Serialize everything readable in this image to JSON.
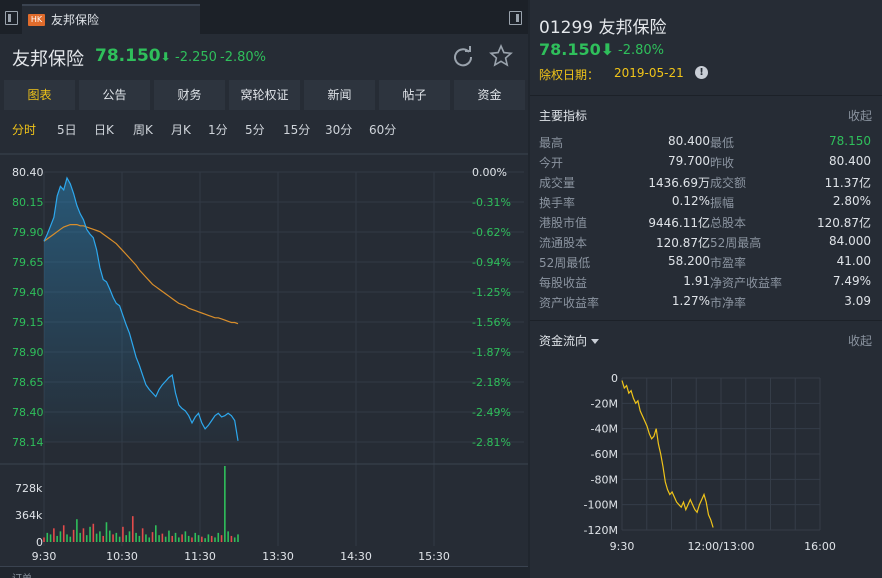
{
  "tab": {
    "badge": "HK",
    "label": "友邦保险"
  },
  "quote": {
    "name": "友邦保险",
    "price": "78.150",
    "arrow": "⬇",
    "change": "-2.250",
    "pct": "-2.80%"
  },
  "subtabs": [
    "图表",
    "公告",
    "财务",
    "窝轮权证",
    "新闻",
    "帖子",
    "资金"
  ],
  "active_subtab": "图表",
  "periods": [
    "分时",
    "5日",
    "日K",
    "周K",
    "月K",
    "1分",
    "5分",
    "15分",
    "30分",
    "60分"
  ],
  "active_period": "分时",
  "bottom_label": "订单",
  "colors": {
    "green": "#2fbf5b",
    "red": "#e34b4b",
    "yellow": "#f0c419",
    "blue": "#2da8ee",
    "orange": "#d98e2b",
    "panel": "#262c35"
  },
  "icons": {
    "refresh": "refresh-icon",
    "star": "star-icon",
    "info": "info-icon",
    "toggle": "panel-toggle-icon"
  },
  "right": {
    "code_name": "01299 友邦保险",
    "price": "78.150⬇",
    "pct": "-2.80%",
    "exdiv_label": "除权日期：",
    "exdiv_date": "2019-05-21",
    "indicators_title": "主要指标",
    "collapse": "收起",
    "metrics": [
      [
        [
          "最高",
          "80.400",
          ""
        ],
        [
          "最低",
          "78.150",
          "green"
        ]
      ],
      [
        [
          "今开",
          "79.700",
          ""
        ],
        [
          "昨收",
          "80.400",
          ""
        ]
      ],
      [
        [
          "成交量",
          "1436.69万",
          ""
        ],
        [
          "成交额",
          "11.37亿",
          ""
        ]
      ],
      [
        [
          "换手率",
          "0.12%",
          ""
        ],
        [
          "振幅",
          "2.80%",
          ""
        ]
      ],
      [
        [
          "港股市值",
          "9446.11亿",
          ""
        ],
        [
          "总股本",
          "120.87亿",
          ""
        ]
      ],
      [
        [
          "流通股本",
          "120.87亿",
          ""
        ],
        [
          "52周最高",
          "84.000",
          ""
        ]
      ],
      [
        [
          "52周最低",
          "58.200",
          ""
        ],
        [
          "市盈率",
          "41.00",
          ""
        ]
      ],
      [
        [
          "每股收益",
          "1.91",
          ""
        ],
        [
          "净资产收益率",
          "7.49%",
          ""
        ]
      ],
      [
        [
          "资产收益率",
          "1.27%",
          ""
        ],
        [
          "市净率",
          "3.09",
          ""
        ]
      ]
    ],
    "flow_title": "资金流向",
    "flow_collapse": "收起"
  },
  "chart_data": [
    {
      "type": "line",
      "title": "",
      "prev_close": 80.4,
      "ylim": [
        78.14,
        80.4
      ],
      "y_ticks": [
        "80.40",
        "80.15",
        "79.90",
        "79.65",
        "79.40",
        "79.15",
        "78.90",
        "78.65",
        "78.40",
        "78.14"
      ],
      "pct_ticks": [
        "0.00%",
        "-0.31%",
        "-0.62%",
        "-0.94%",
        "-1.25%",
        "-1.56%",
        "-1.87%",
        "-2.18%",
        "-2.49%",
        "-2.81%"
      ],
      "x_ticks": [
        "9:30",
        "10:30",
        "11:30",
        "13:30",
        "14:30",
        "15:30"
      ],
      "volume_ticks": [
        "728k",
        "364k",
        "0"
      ],
      "series": [
        {
          "values": [
            79.82,
            79.88,
            79.95,
            80.02,
            80.2,
            80.28,
            80.25,
            80.35,
            80.3,
            80.22,
            80.12,
            80.05,
            80.0,
            79.92,
            79.88,
            79.85,
            79.75,
            79.6,
            79.5,
            79.48,
            79.42,
            79.35,
            79.3,
            79.28,
            79.2,
            79.12,
            79.05,
            78.95,
            78.85,
            78.78,
            78.7,
            78.62,
            78.58,
            78.55,
            78.52,
            78.58,
            78.62,
            78.65,
            78.68,
            78.7,
            78.55,
            78.45,
            78.42,
            78.4,
            78.36,
            78.3,
            78.35,
            78.38,
            78.3,
            78.25,
            78.28,
            78.32,
            78.36,
            78.38,
            78.35,
            78.36,
            78.38,
            78.36,
            78.32,
            78.15
          ]
        },
        {
          "values": [
            79.82,
            79.84,
            79.86,
            79.88,
            79.9,
            79.92,
            79.94,
            79.95,
            79.96,
            79.96,
            79.96,
            79.95,
            79.95,
            79.94,
            79.93,
            79.92,
            79.91,
            79.9,
            79.88,
            79.86,
            79.84,
            79.82,
            79.8,
            79.77,
            79.74,
            79.71,
            79.68,
            79.65,
            79.62,
            79.58,
            79.55,
            79.52,
            79.49,
            79.46,
            79.44,
            79.42,
            79.4,
            79.38,
            79.36,
            79.34,
            79.32,
            79.3,
            79.29,
            79.28,
            79.26,
            79.25,
            79.24,
            79.23,
            79.22,
            79.21,
            79.2,
            79.19,
            79.18,
            79.18,
            79.17,
            79.16,
            79.15,
            79.14,
            79.14,
            79.13
          ]
        }
      ],
      "volumes": [
        0.06,
        0.12,
        0.1,
        0.18,
        0.08,
        0.14,
        0.22,
        0.1,
        0.07,
        0.16,
        0.3,
        0.12,
        0.18,
        0.09,
        0.2,
        0.24,
        0.11,
        0.14,
        0.08,
        0.26,
        0.15,
        0.1,
        0.12,
        0.07,
        0.2,
        0.09,
        0.14,
        0.34,
        0.12,
        0.08,
        0.18,
        0.1,
        0.06,
        0.13,
        0.22,
        0.09,
        0.11,
        0.07,
        0.15,
        0.08,
        0.12,
        0.06,
        0.1,
        0.14,
        0.08,
        0.06,
        0.12,
        0.09,
        0.07,
        0.05,
        0.1,
        0.08,
        0.06,
        0.12,
        0.09,
        1.0,
        0.14,
        0.08,
        0.06,
        0.1
      ]
    },
    {
      "type": "line",
      "title": "",
      "ylim": [
        -120,
        0
      ],
      "y_ticks": [
        "0",
        "-20M",
        "-40M",
        "-60M",
        "-80M",
        "-100M",
        "-120M"
      ],
      "x_ticks": [
        "9:30",
        "12:00/13:00",
        "16:00"
      ],
      "values": [
        -2,
        -8,
        -6,
        -12,
        -10,
        -16,
        -20,
        -18,
        -26,
        -30,
        -34,
        -38,
        -44,
        -48,
        -46,
        -40,
        -52,
        -60,
        -70,
        -82,
        -88,
        -92,
        -90,
        -94,
        -98,
        -100,
        -102,
        -98,
        -104,
        -100,
        -96,
        -100,
        -104,
        -106,
        -100,
        -96,
        -92,
        -98,
        -108,
        -112,
        -118
      ]
    }
  ]
}
